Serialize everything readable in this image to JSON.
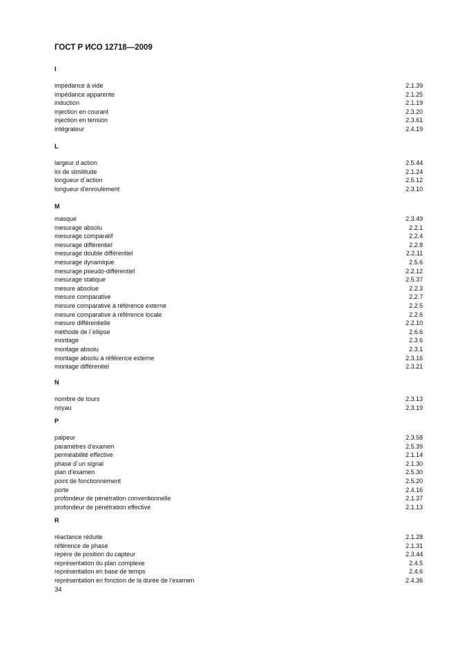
{
  "header": {
    "title": "ГОСТ Р ИСО 12718—2009"
  },
  "sections": [
    {
      "letter": "I",
      "entries": [
        {
          "term": "impédance à vide",
          "ref": "2.1.39"
        },
        {
          "term": "impédance apparente",
          "ref": "2.1.25"
        },
        {
          "term": "induction",
          "ref": "2.1.19"
        },
        {
          "term": "injection en courant",
          "ref": "2.3.20"
        },
        {
          "term": "injection en tension",
          "ref": "2.3.61"
        },
        {
          "term": "intégrateur",
          "ref": "2.4.19"
        }
      ]
    },
    {
      "letter": "L",
      "entries": [
        {
          "term": "largeur d action",
          "ref": "2.5.44"
        },
        {
          "term": "loi de similitude",
          "ref": "2.1.24"
        },
        {
          "term": "longueur d`action",
          "ref": "2.5.12"
        },
        {
          "term": "longueur d'enroulement",
          "ref": "2.3.10"
        }
      ]
    },
    {
      "letter": "M",
      "entries": [
        {
          "term": "masque",
          "ref": "2.3.49"
        },
        {
          "term": "mesurage absolu",
          "ref": "2.2.1"
        },
        {
          "term": "mesurage comparatif",
          "ref": "2.2.4"
        },
        {
          "term": "mesurage différentiel",
          "ref": "2.2.8"
        },
        {
          "term": "mesurage double différentiel",
          "ref": "2.2.11"
        },
        {
          "term": "mesurage dynamique",
          "ref": "2.5.6"
        },
        {
          "term": "mesurage pseudo-différentiel",
          "ref": "2.2.12"
        },
        {
          "term": "mesurage statique",
          "ref": "2.5.37"
        },
        {
          "term": "mesure absolue",
          "ref": "2.2.3"
        },
        {
          "term": "mesure comparative",
          "ref": "2.2.7"
        },
        {
          "term": "mesure comparative à référence externe",
          "ref": "2.2.5"
        },
        {
          "term": "mesure comparative à référence locale",
          "ref": "2.2.6"
        },
        {
          "term": "mesure différentielle",
          "ref": "2.2.10"
        },
        {
          "term": "méthode de l`ellipse",
          "ref": "2.6.6"
        },
        {
          "term": "montage",
          "ref": "2.3.6"
        },
        {
          "term": "montage absolu",
          "ref": "2.3.1"
        },
        {
          "term": "montage absolu à référence externe",
          "ref": "2.3.16"
        },
        {
          "term": "montage différentiel",
          "ref": "2.3.21"
        }
      ]
    },
    {
      "letter": "N",
      "entries": [
        {
          "term": "nombre de tours",
          "ref": "2.3.13"
        },
        {
          "term": "noyau",
          "ref": "2.3.19"
        }
      ]
    },
    {
      "letter": "P",
      "entries": [
        {
          "term": "palpeur",
          "ref": "2.3.58"
        },
        {
          "term": "paramètres d'examen",
          "ref": "2.5.39"
        },
        {
          "term": "perméabilité effective",
          "ref": "2.1.14"
        },
        {
          "term": "phase d`un signal",
          "ref": "2.1.30"
        },
        {
          "term": "plan d'examen",
          "ref": "2.5.30"
        },
        {
          "term": "point de fonctionnement",
          "ref": "2.5.20"
        },
        {
          "term": "porte",
          "ref": "2.4.16"
        },
        {
          "term": "profondeur de pénétration conventionnelle",
          "ref": "2.1.37"
        },
        {
          "term": "profondeur de pénétration effective",
          "ref": "2.1.13"
        }
      ]
    },
    {
      "letter": "R",
      "entries": [
        {
          "term": "réactance réduite",
          "ref": "2.1.28"
        },
        {
          "term": "référence de phase",
          "ref": "2.1.31"
        },
        {
          "term": "repère de position du capteur",
          "ref": "2.3.44"
        },
        {
          "term": "représentation du plan complexe",
          "ref": "2.4.5"
        },
        {
          "term": "représentation en base de temps",
          "ref": "2.4.6"
        },
        {
          "term": "représentation en fonction de la durée de l'examen",
          "ref": "2.4.36"
        }
      ]
    }
  ],
  "footer": {
    "page_number": "34"
  }
}
